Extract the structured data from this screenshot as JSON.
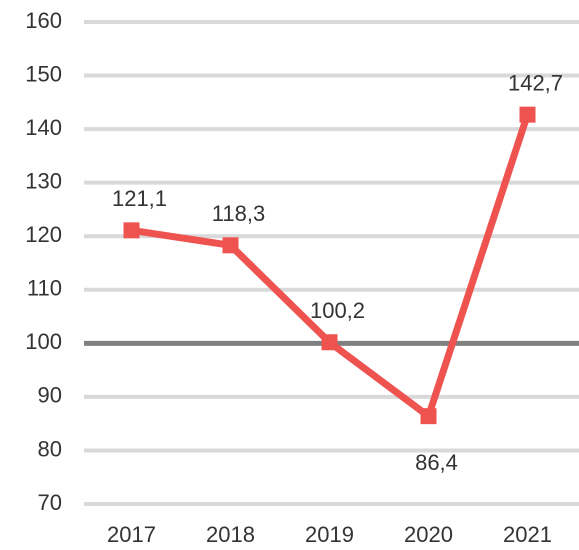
{
  "chart_data": {
    "type": "line",
    "categories": [
      "2017",
      "2018",
      "2019",
      "2020",
      "2021"
    ],
    "series": [
      {
        "color": "#ef5350",
        "values": [
          121.1,
          118.3,
          100.2,
          86.4,
          142.7
        ],
        "value_labels": [
          "121,1",
          "118,3",
          "100,2",
          "86,4",
          "142,7"
        ]
      }
    ],
    "ylim": [
      70,
      160
    ],
    "yticks": [
      70,
      80,
      90,
      100,
      110,
      120,
      130,
      140,
      150,
      160
    ],
    "grid": true,
    "reference_line": 100
  }
}
